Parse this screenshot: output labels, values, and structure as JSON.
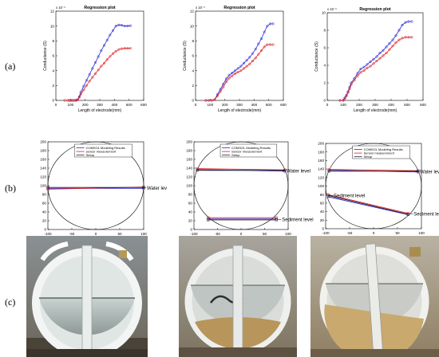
{
  "row_labels": [
    "(a)",
    "(b)",
    "(c)"
  ],
  "chart_data": [
    {
      "type": "line",
      "panel": "a1",
      "title": "Regression plot",
      "xlabel": "Length of electrode(mm)",
      "ylabel": "Conductance (S)",
      "y_exponent": "x 10⁻³",
      "xlim": [
        0,
        600
      ],
      "ylim": [
        0,
        12
      ],
      "xticks": [
        0,
        100,
        200,
        300,
        400,
        500,
        600
      ],
      "yticks": [
        0,
        2,
        4,
        6,
        8,
        10,
        12
      ],
      "series": [
        {
          "color": "#2b2bd6",
          "marker": "circle",
          "x": [
            90,
            100,
            110,
            120,
            130,
            140,
            150,
            160,
            170,
            190,
            210,
            230,
            250,
            270,
            290,
            310,
            330,
            350,
            370,
            390,
            410,
            430,
            450,
            470,
            490,
            510
          ],
          "y": [
            0,
            0,
            0,
            0,
            0,
            0.05,
            0.1,
            0.5,
            1.1,
            1.9,
            2.7,
            3.5,
            4.3,
            5.1,
            5.9,
            6.7,
            7.4,
            8.1,
            8.8,
            9.4,
            10.0,
            10.15,
            10.1,
            10.0,
            10.0,
            10.05
          ]
        },
        {
          "color": "#e02020",
          "marker": "circle",
          "x": [
            60,
            80,
            100,
            110,
            120,
            130,
            140,
            150,
            160,
            170,
            190,
            210,
            230,
            250,
            270,
            290,
            310,
            330,
            350,
            370,
            390,
            410,
            430,
            450,
            470,
            490,
            510
          ],
          "y": [
            0,
            0,
            0,
            0,
            0,
            0,
            0,
            0.1,
            0.4,
            0.8,
            1.4,
            2.0,
            2.6,
            3.1,
            3.6,
            4.1,
            4.6,
            5.0,
            5.5,
            5.9,
            6.3,
            6.6,
            6.85,
            6.95,
            7.0,
            7.0,
            7.0
          ]
        }
      ]
    },
    {
      "type": "line",
      "panel": "a2",
      "title": "Regression plot",
      "xlabel": "Length of electrode(mm)",
      "ylabel": "Conductance (S)",
      "y_exponent": "x 10⁻³",
      "xlim": [
        0,
        600
      ],
      "ylim": [
        0,
        12
      ],
      "xticks": [
        0,
        100,
        200,
        300,
        400,
        500,
        600
      ],
      "yticks": [
        0,
        2,
        4,
        6,
        8,
        10,
        12
      ],
      "series": [
        {
          "color": "#2b2bd6",
          "marker": "circle",
          "x": [
            70,
            90,
            110,
            130,
            150,
            170,
            190,
            210,
            230,
            250,
            270,
            290,
            310,
            330,
            350,
            370,
            390,
            410,
            430,
            450,
            470,
            490,
            510,
            530
          ],
          "y": [
            0,
            0,
            0,
            0.1,
            0.8,
            1.5,
            2.2,
            2.9,
            3.4,
            3.7,
            4.0,
            4.3,
            4.6,
            5.0,
            5.4,
            5.8,
            6.3,
            6.9,
            7.6,
            8.3,
            9.2,
            10.0,
            10.3,
            10.3
          ]
        },
        {
          "color": "#e02020",
          "marker": "circle",
          "x": [
            70,
            90,
            110,
            130,
            150,
            170,
            190,
            210,
            230,
            250,
            270,
            290,
            310,
            330,
            350,
            370,
            390,
            410,
            430,
            450,
            470,
            490,
            510,
            530
          ],
          "y": [
            0,
            0,
            0,
            0.1,
            0.6,
            1.2,
            1.8,
            2.5,
            3.0,
            3.3,
            3.6,
            3.8,
            4.0,
            4.3,
            4.6,
            4.9,
            5.3,
            5.7,
            6.2,
            6.7,
            7.2,
            7.5,
            7.5,
            7.5
          ]
        }
      ]
    },
    {
      "type": "line",
      "panel": "a3",
      "title": "Regression plot",
      "xlabel": "Length of electrode(mm)",
      "ylabel": "Conductance (S)",
      "y_exponent": "x 10⁻³",
      "xlim": [
        0,
        600
      ],
      "ylim": [
        0,
        10
      ],
      "xticks": [
        0,
        100,
        200,
        300,
        400,
        500,
        600
      ],
      "yticks": [
        0,
        2,
        4,
        6,
        8,
        10
      ],
      "series": [
        {
          "color": "#2b2bd6",
          "marker": "circle",
          "x": [
            80,
            100,
            110,
            120,
            130,
            140,
            150,
            170,
            190,
            210,
            230,
            250,
            270,
            290,
            310,
            330,
            350,
            370,
            390,
            410,
            430,
            450,
            470,
            490,
            510,
            530
          ],
          "y": [
            0,
            0,
            0.3,
            0.6,
            1.0,
            1.5,
            2.0,
            2.5,
            3.1,
            3.6,
            3.8,
            4.1,
            4.4,
            4.7,
            5.0,
            5.4,
            5.7,
            6.1,
            6.5,
            6.9,
            7.4,
            8.0,
            8.6,
            8.9,
            9.0,
            9.0
          ]
        },
        {
          "color": "#e02020",
          "marker": "circle",
          "x": [
            80,
            100,
            110,
            120,
            130,
            140,
            150,
            170,
            190,
            210,
            230,
            250,
            270,
            290,
            310,
            330,
            350,
            370,
            390,
            410,
            430,
            450,
            470,
            490,
            510,
            530
          ],
          "y": [
            0,
            0,
            0.2,
            0.5,
            0.9,
            1.3,
            1.8,
            2.3,
            2.8,
            3.2,
            3.4,
            3.7,
            3.9,
            4.2,
            4.5,
            4.8,
            5.1,
            5.4,
            5.8,
            6.2,
            6.6,
            6.9,
            7.1,
            7.2,
            7.2,
            7.2
          ]
        }
      ]
    },
    {
      "type": "line",
      "panel": "b1",
      "xlim": [
        -100,
        100
      ],
      "ylim": [
        0,
        200
      ],
      "xticks": [
        -100,
        -50,
        0,
        50,
        100
      ],
      "yticks": [
        0,
        20,
        40,
        60,
        80,
        100,
        120,
        140,
        160,
        180,
        200
      ],
      "legend": [
        "COMSOL Modeling Results",
        "sensor measurement",
        "Setup"
      ],
      "annotations": [
        {
          "text": "Water lev",
          "x": 95,
          "y": 95
        }
      ],
      "lines": [
        {
          "color": "#2b2bd6",
          "x": [
            -100,
            100
          ],
          "y": [
            94,
            94
          ]
        },
        {
          "color": "#e02020",
          "x": [
            -100,
            100
          ],
          "y": [
            92,
            97
          ]
        },
        {
          "color": "#222222",
          "x": [
            -100,
            100
          ],
          "y": [
            96,
            96
          ]
        }
      ]
    },
    {
      "type": "line",
      "panel": "b2",
      "xlim": [
        -100,
        100
      ],
      "ylim": [
        0,
        200
      ],
      "xticks": [
        -100,
        -50,
        0,
        50,
        100
      ],
      "yticks": [
        0,
        20,
        40,
        60,
        80,
        100,
        120,
        140,
        160,
        180,
        200
      ],
      "legend": [
        "COMSOL Modeling Results",
        "Sensor measurement",
        "Setup"
      ],
      "annotations": [
        {
          "text": "Water level",
          "x": 85,
          "y": 134
        },
        {
          "text": "Sediment level",
          "x": 75,
          "y": 23
        }
      ],
      "lines": [
        {
          "color": "#2b2bd6",
          "x": [
            -93,
            93
          ],
          "y": [
            137,
            133
          ]
        },
        {
          "color": "#e02020",
          "x": [
            -93,
            93
          ],
          "y": [
            139,
            136
          ]
        },
        {
          "color": "#222222",
          "x": [
            -93,
            93
          ],
          "y": [
            135,
            135
          ]
        },
        {
          "color": "#2b2bd6",
          "x": [
            -70,
            75
          ],
          "y": [
            24,
            24
          ]
        },
        {
          "color": "#e02020",
          "x": [
            -70,
            75
          ],
          "y": [
            27,
            27
          ]
        },
        {
          "color": "#222222",
          "x": [
            -70,
            75
          ],
          "y": [
            22,
            22
          ]
        }
      ]
    },
    {
      "type": "line",
      "panel": "b3",
      "xlim": [
        -100,
        100
      ],
      "ylim": [
        0,
        200
      ],
      "xticks": [
        -100,
        -50,
        0,
        50,
        100
      ],
      "yticks": [
        0,
        20,
        40,
        60,
        80,
        100,
        120,
        140,
        160,
        180,
        200
      ],
      "legend": [
        "COMSOL Modeling Results",
        "Sensor measurement",
        "Setup"
      ],
      "annotations": [
        {
          "text": "Water level",
          "x": 85,
          "y": 134
        },
        {
          "text": "Sediment level",
          "x": -95,
          "y": 78
        },
        {
          "text": "Sediment level",
          "x": 72,
          "y": 35
        }
      ],
      "lines": [
        {
          "color": "#2b2bd6",
          "x": [
            -93,
            93
          ],
          "y": [
            137,
            133
          ]
        },
        {
          "color": "#e02020",
          "x": [
            -93,
            93
          ],
          "y": [
            139,
            136
          ]
        },
        {
          "color": "#222222",
          "x": [
            -93,
            93
          ],
          "y": [
            135,
            135
          ]
        },
        {
          "color": "#2b2bd6",
          "x": [
            -95,
            72
          ],
          "y": [
            75,
            33
          ]
        },
        {
          "color": "#e02020",
          "x": [
            -95,
            72
          ],
          "y": [
            80,
            36
          ]
        },
        {
          "color": "#222222",
          "x": [
            -95,
            72
          ],
          "y": [
            78,
            34
          ]
        }
      ]
    }
  ]
}
